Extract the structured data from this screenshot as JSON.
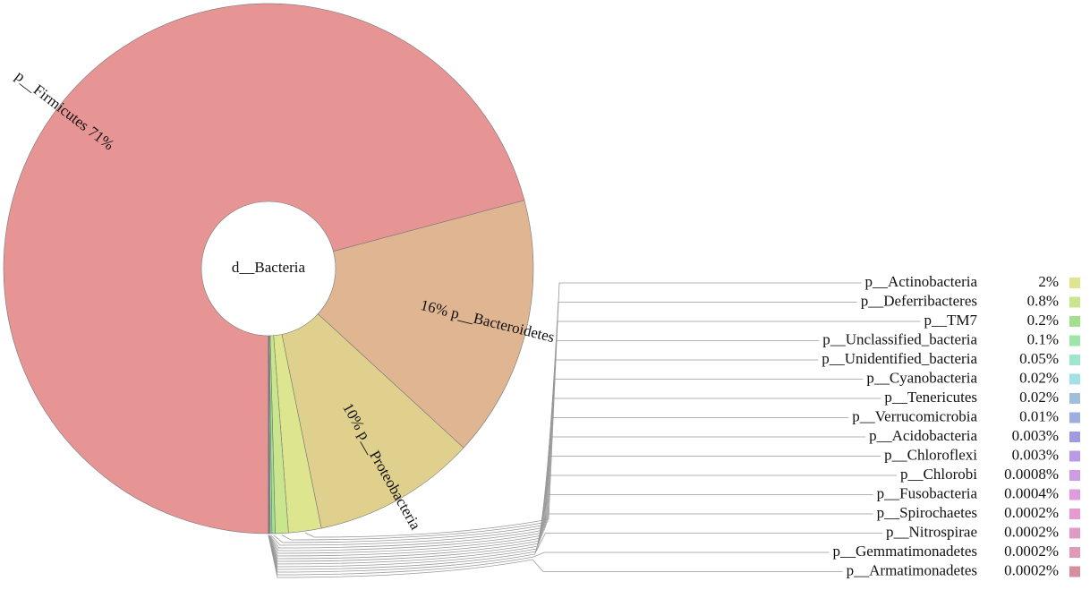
{
  "chart_data": {
    "type": "pie",
    "center_label": "d__Bacteria",
    "categories": [
      "p__Firmicutes",
      "p__Bacteroidetes",
      "p__Proteobacteria",
      "p__Actinobacteria",
      "p__Deferribacteres",
      "p__TM7",
      "p__Unclassified_bacteria",
      "p__Unidentified_bacteria",
      "p__Cyanobacteria",
      "p__Tenericutes",
      "p__Verrucomicrobia",
      "p__Acidobacteria",
      "p__Chloroflexi",
      "p__Chlorobi",
      "p__Fusobacteria",
      "p__Spirochaetes",
      "p__Nitrospirae",
      "p__Gemmatimonadetes",
      "p__Armatimonadetes"
    ],
    "values": [
      71,
      16,
      10,
      2,
      0.8,
      0.2,
      0.1,
      0.05,
      0.02,
      0.02,
      0.01,
      0.003,
      0.003,
      0.0008,
      0.0004,
      0.0002,
      0.0002,
      0.0002,
      0.0002
    ],
    "value_labels": [
      "71%",
      "16%",
      "10%",
      "2%",
      "0.8%",
      "0.2%",
      "0.1%",
      "0.05%",
      "0.02%",
      "0.02%",
      "0.01%",
      "0.003%",
      "0.003%",
      "0.0008%",
      "0.0004%",
      "0.0002%",
      "0.0002%",
      "0.0002%",
      "0.0002%"
    ],
    "colors": [
      "#e69494",
      "#e0b592",
      "#dfd08e",
      "#dde68e",
      "#c9e68e",
      "#a3e08e",
      "#9ee6a8",
      "#9ee6cc",
      "#a3e0e6",
      "#9ec0dc",
      "#9eaee0",
      "#a09ae0",
      "#b89ae6",
      "#cf9ae6",
      "#e09ae0",
      "#e69ad0",
      "#e09ac6",
      "#e09ab8",
      "#d98ea0"
    ]
  }
}
